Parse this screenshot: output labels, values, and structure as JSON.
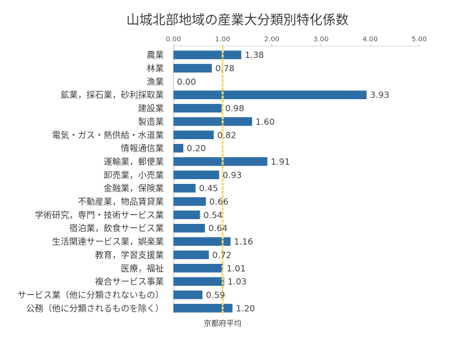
{
  "chart_data": {
    "type": "bar",
    "orientation": "horizontal",
    "title": "山城北部地域の産業大分類別特化係数",
    "categories": [
      "農業",
      "林業",
      "漁業",
      "鉱業，採石業，砂利採取業",
      "建設業",
      "製造業",
      "電気・ガス・熱供給・水道業",
      "情報通信業",
      "運輸業，郵便業",
      "卸売業，小売業",
      "金融業，保険業",
      "不動産業，物品賃貸業",
      "学術研究，専門・技術サービス業",
      "宿泊業，飲食サービス業",
      "生活関連サービス業，娯楽業",
      "教育，学習支援業",
      "医療，福祉",
      "複合サービス事業",
      "サービス業（他に分類されないもの）",
      "公務（他に分類されるものを除く）"
    ],
    "values": [
      1.38,
      0.78,
      0.0,
      3.93,
      0.98,
      1.6,
      0.82,
      0.2,
      1.91,
      0.93,
      0.45,
      0.66,
      0.54,
      0.64,
      1.16,
      0.72,
      1.01,
      1.03,
      0.59,
      1.2
    ],
    "value_labels": [
      "1.38",
      "0.78",
      "0.00",
      "3.93",
      "0.98",
      "1.60",
      "0.82",
      "0.20",
      "1.91",
      "0.93",
      "0.45",
      "0.66",
      "0.54",
      "0.64",
      "1.16",
      "0.72",
      "1.01",
      "1.03",
      "0.59",
      "1.20"
    ],
    "xlim": [
      0,
      5
    ],
    "xticks": [
      "0.00",
      "1.00",
      "2.00",
      "3.00",
      "4.00",
      "5.00"
    ],
    "x_axis_position": "top",
    "reference_line": {
      "value": 1.0,
      "label": "京都府平均",
      "color": "#ffd966",
      "style": "dotted"
    },
    "bar_color": "#2e6ea6",
    "grid": false,
    "legend": "none"
  }
}
